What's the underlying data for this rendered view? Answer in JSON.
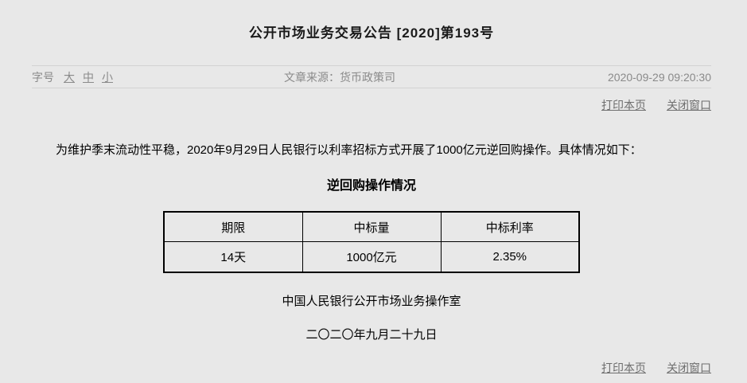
{
  "page": {
    "background": "#e8e8e8",
    "line_color": "#d2d2d2",
    "muted_color": "#8a8a8a",
    "link_color": "#6e6e6e",
    "text_color": "#000000"
  },
  "header": {
    "title": "公开市场业务交易公告 [2020]第193号"
  },
  "meta": {
    "fontsize_label": "字号",
    "fontsize_options": [
      {
        "label": "大"
      },
      {
        "label": "中"
      },
      {
        "label": "小"
      }
    ],
    "source_label": "文章来源：",
    "source_value": "货币政策司",
    "timestamp": "2020-09-29 09:20:30"
  },
  "actions": {
    "print_label": "打印本页",
    "close_label": "关闭窗口"
  },
  "article": {
    "paragraph": "为维护季末流动性平稳，2020年9月29日人民银行以利率招标方式开展了1000亿元逆回购操作。具体情况如下：",
    "table_title": "逆回购操作情况",
    "signature": "中国人民银行公开市场业务操作室",
    "date_cn": "二〇二〇年九月二十九日"
  },
  "table": {
    "type": "table",
    "title": "逆回购操作情况",
    "columns": [
      "期限",
      "中标量",
      "中标利率"
    ],
    "rows": [
      [
        "14天",
        "1000亿元",
        "2.35%"
      ]
    ]
  }
}
